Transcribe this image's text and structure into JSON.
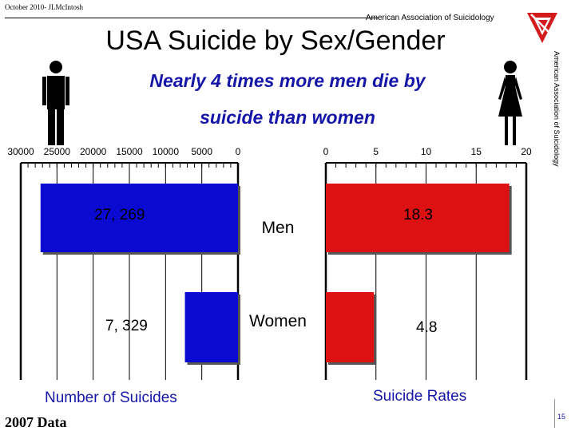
{
  "header": {
    "author_note": "October 2010- JLMcIntosh",
    "organization": "American Association of Suicidology",
    "side_text": "American Association of Suicidology"
  },
  "slide": {
    "title": "USA Suicide by Sex/Gender",
    "subtitle_line1": "Nearly 4 times more men die by",
    "subtitle_line2": "suicide than women",
    "data_year": "2007 Data",
    "page_number": "15"
  },
  "colors": {
    "blue": "#0a0ad0",
    "red": "#dd1111",
    "text_blue": "#1515a8"
  },
  "icons": [
    "man-icon",
    "woman-icon",
    "aas-logo-icon"
  ],
  "chart_data": [
    {
      "type": "bar",
      "orientation": "horizontal",
      "direction": "right-to-left",
      "categories": [
        "Men",
        "Women"
      ],
      "values": [
        27269,
        7329
      ],
      "value_labels": [
        "27, 269",
        "7, 329"
      ],
      "xticks": [
        "30000",
        "25000",
        "20000",
        "15000",
        "10000",
        "5000",
        "0"
      ],
      "xlim": [
        0,
        30000
      ],
      "xlabel": "Number of Suicides",
      "grid": true,
      "color": "#0a0ad0"
    },
    {
      "type": "bar",
      "orientation": "horizontal",
      "categories": [
        "Men",
        "Women"
      ],
      "values": [
        18.3,
        4.8
      ],
      "value_labels": [
        "18.3",
        "4.8"
      ],
      "xticks": [
        "0",
        "5",
        "10",
        "15",
        "20"
      ],
      "xlim": [
        0,
        20
      ],
      "xlabel": "Suicide Rates",
      "grid": true,
      "color": "#dd1111"
    }
  ]
}
